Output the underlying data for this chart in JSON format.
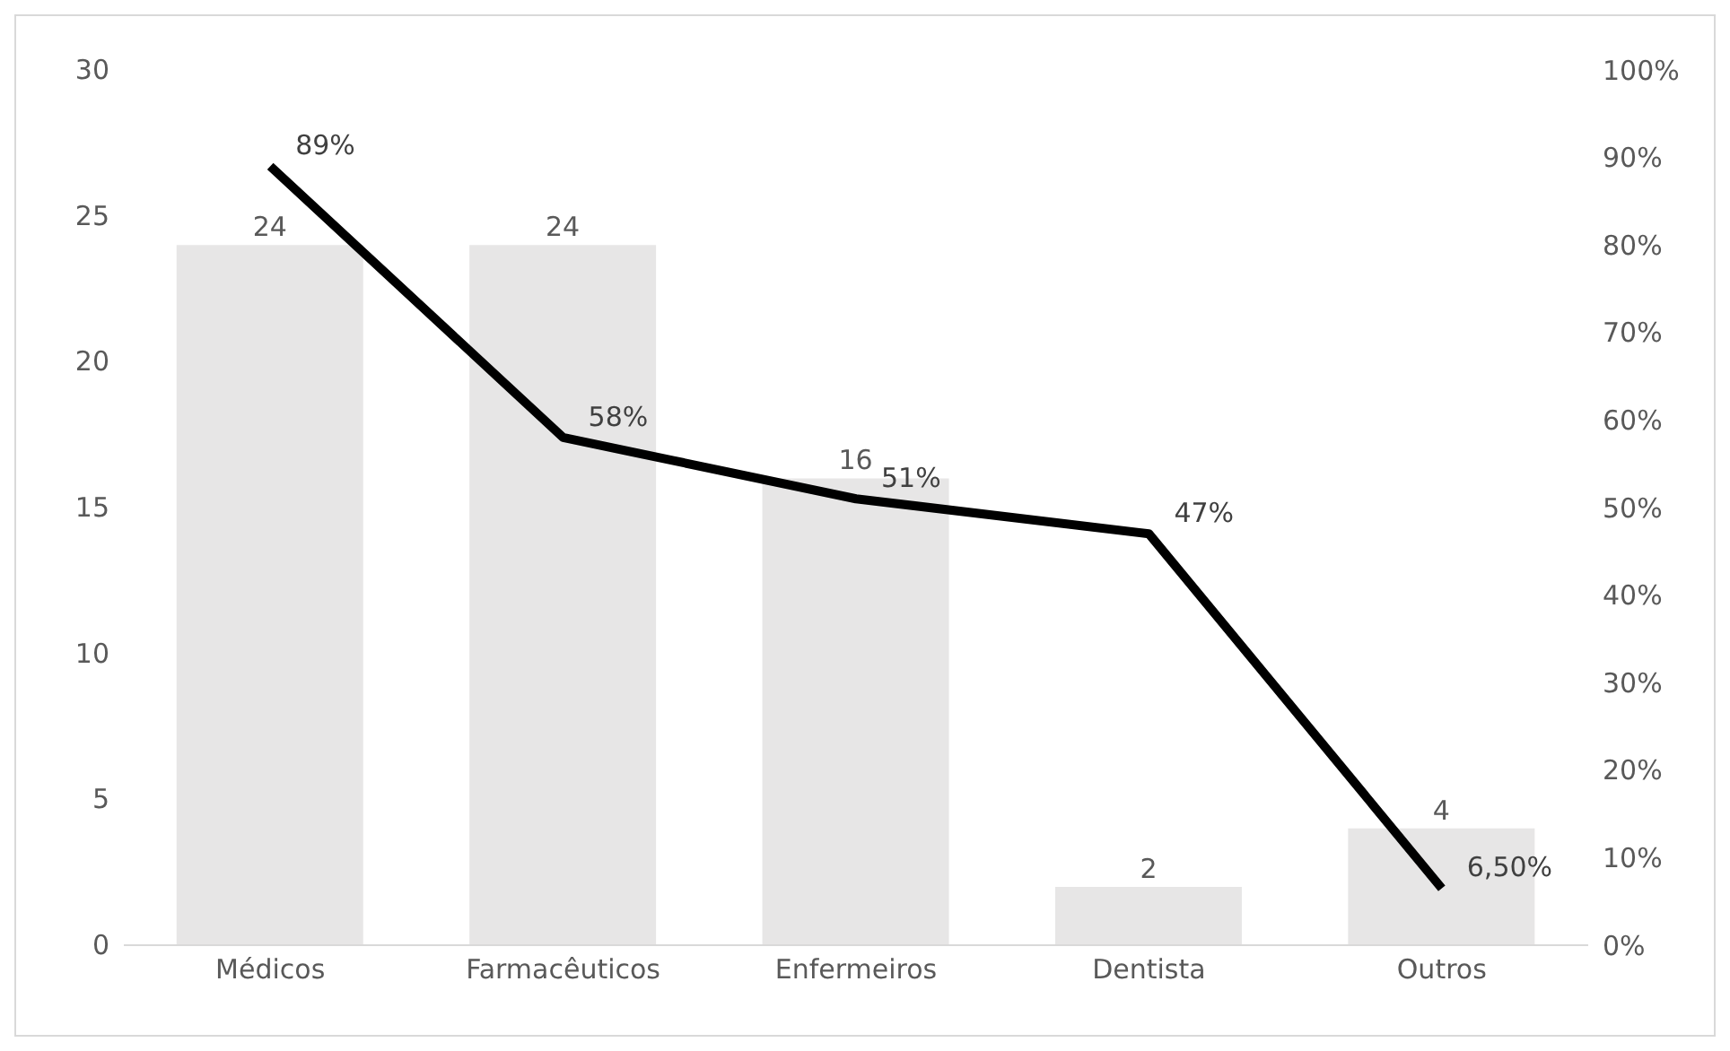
{
  "chart_data": {
    "type": "bar",
    "categories": [
      "Médicos",
      "Farmacêuticos",
      "Enfermeiros",
      "Dentista",
      "Outros"
    ],
    "series": [
      {
        "color": "#e7e6e6",
        "values": [
          24,
          24,
          16,
          2,
          4
        ],
        "value_labels": [
          "24",
          "24",
          "16",
          "2",
          "4"
        ]
      },
      {
        "type": "line",
        "axis": "y2",
        "color": "#000000",
        "values": [
          89,
          58,
          51,
          47,
          6.5
        ],
        "value_labels": [
          "89%",
          "58%",
          "51%",
          "47%",
          "6,50%"
        ]
      }
    ],
    "ylim": [
      0,
      30
    ],
    "yticks": [
      0,
      5,
      10,
      15,
      20,
      25,
      30
    ],
    "y2lim": [
      0,
      100
    ],
    "y2ticks": [
      {
        "value": 0,
        "label": "0%"
      },
      {
        "value": 10,
        "label": "10%"
      },
      {
        "value": 20,
        "label": "20%"
      },
      {
        "value": 30,
        "label": "30%"
      },
      {
        "value": 40,
        "label": "40%"
      },
      {
        "value": 50,
        "label": "50%"
      },
      {
        "value": 60,
        "label": "60%"
      },
      {
        "value": 70,
        "label": "70%"
      },
      {
        "value": 80,
        "label": "80%"
      },
      {
        "value": 90,
        "label": "90%"
      },
      {
        "value": 100,
        "label": "100%"
      }
    ],
    "grid": false,
    "legend": false,
    "marker": "none",
    "line_style": "solid"
  }
}
